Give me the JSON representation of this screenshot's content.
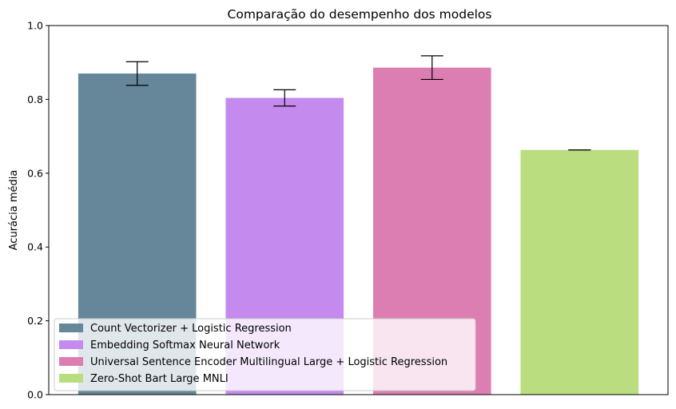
{
  "chart_data": {
    "type": "bar",
    "title": "Comparação do desempenho dos modelos",
    "xlabel": "",
    "ylabel": "Acurácia média",
    "ylim": [
      0,
      1.0
    ],
    "yticks": [
      "0.0",
      "0.2",
      "0.4",
      "0.6",
      "0.8",
      "1.0"
    ],
    "categories": [
      "Count Vectorizer + Logistic Regression",
      "Embedding Softmax Neural Network",
      "Universal Sentence Encoder Multilingual Large + Logistic Regression",
      "Zero-Shot Bart Large MNLI"
    ],
    "values": [
      0.87,
      0.804,
      0.886,
      0.663
    ],
    "errors": [
      0.032,
      0.022,
      0.032,
      0.0
    ],
    "colors": [
      "#658799",
      "#c48aee",
      "#dc7eb1",
      "#badd80"
    ],
    "grid": false,
    "legend_position": "lower-left"
  }
}
